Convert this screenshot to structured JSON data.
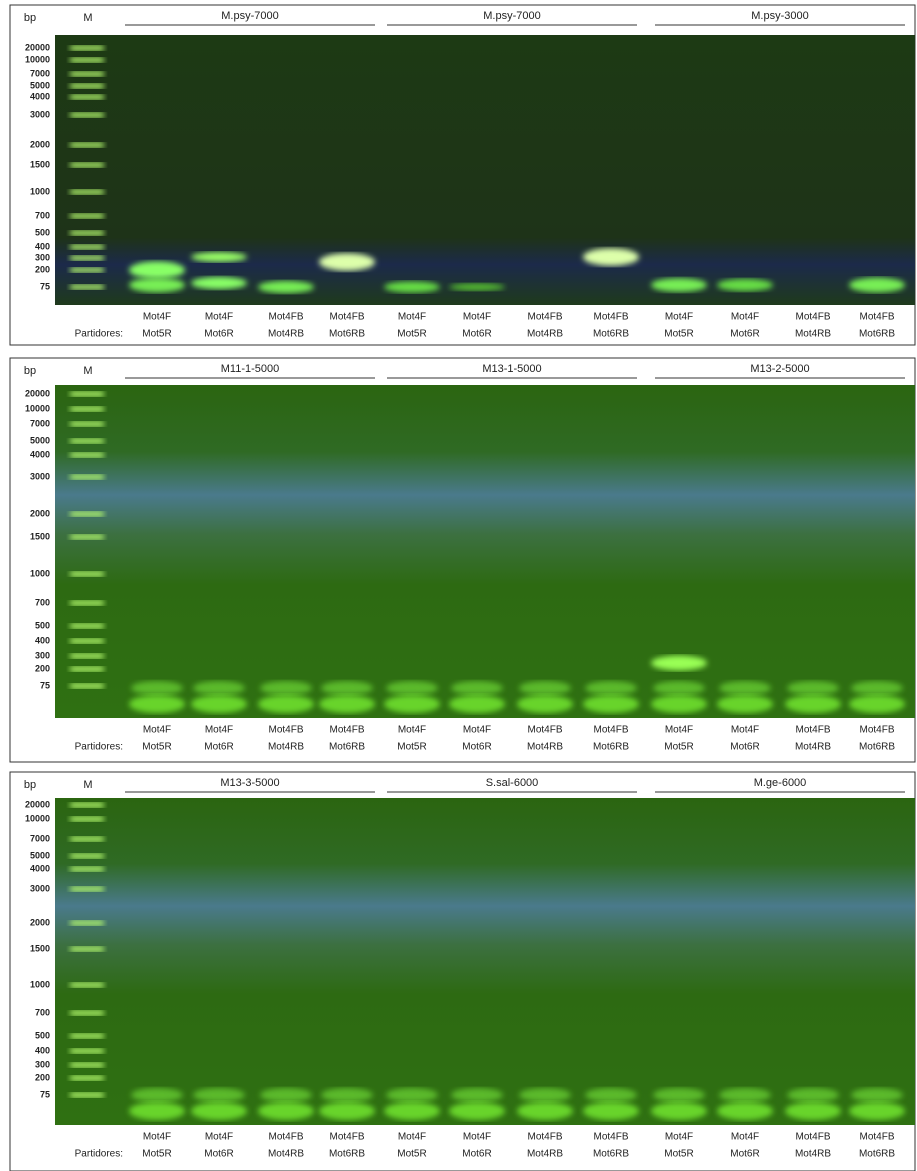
{
  "panels": [
    {
      "bp_label": "bp",
      "marker_label": "M",
      "ladder": [
        "20000",
        "10000",
        "7000",
        "5000",
        "4000",
        "3000",
        "2000",
        "1500",
        "1000",
        "700",
        "500",
        "400",
        "300",
        "200",
        "75"
      ],
      "groups": [
        "M.psy-7000",
        "M.psy-7000",
        "M.psy-3000"
      ],
      "primers_prefix": "Partidores:",
      "primers_top": [
        "Mot4F",
        "Mot4F",
        "Mot4FB",
        "Mot4FB",
        "Mot4F",
        "Mot4F",
        "Mot4FB",
        "Mot4FB",
        "Mot4F",
        "Mot4F",
        "Mot4FB",
        "Mot4FB"
      ],
      "primers_bottom": [
        "Mot5R",
        "Mot6R",
        "Mot4RB",
        "Mot6RB",
        "Mot5R",
        "Mot6R",
        "Mot4RB",
        "Mot6RB",
        "Mot5R",
        "Mot6R",
        "Mot4RB",
        "Mot6RB"
      ]
    },
    {
      "bp_label": "bp",
      "marker_label": "M",
      "ladder": [
        "20000",
        "10000",
        "7000",
        "5000",
        "4000",
        "3000",
        "2000",
        "1500",
        "1000",
        "700",
        "500",
        "400",
        "300",
        "200",
        "75"
      ],
      "groups": [
        "M11-1-5000",
        "M13-1-5000",
        "M13-2-5000"
      ],
      "primers_prefix": "Partidores:",
      "primers_top": [
        "Mot4F",
        "Mot4F",
        "Mot4FB",
        "Mot4FB",
        "Mot4F",
        "Mot4F",
        "Mot4FB",
        "Mot4FB",
        "Mot4F",
        "Mot4F",
        "Mot4FB",
        "Mot4FB"
      ],
      "primers_bottom": [
        "Mot5R",
        "Mot6R",
        "Mot4RB",
        "Mot6RB",
        "Mot5R",
        "Mot6R",
        "Mot4RB",
        "Mot6RB",
        "Mot5R",
        "Mot6R",
        "Mot4RB",
        "Mot6RB"
      ]
    },
    {
      "bp_label": "bp",
      "marker_label": "M",
      "ladder": [
        "20000",
        "10000",
        "7000",
        "5000",
        "4000",
        "3000",
        "2000",
        "1500",
        "1000",
        "700",
        "500",
        "400",
        "300",
        "200",
        "75"
      ],
      "groups": [
        "M13-3-5000",
        "S.sal-6000",
        "M.ge-6000"
      ],
      "primers_prefix": "Partidores:",
      "primers_top": [
        "Mot4F",
        "Mot4F",
        "Mot4FB",
        "Mot4FB",
        "Mot4F",
        "Mot4F",
        "Mot4FB",
        "Mot4FB",
        "Mot4F",
        "Mot4F",
        "Mot4FB",
        "Mot4FB"
      ],
      "primers_bottom": [
        "Mot5R",
        "Mot6R",
        "Mot4RB",
        "Mot6RB",
        "Mot5R",
        "Mot6R",
        "Mot4RB",
        "Mot6RB",
        "Mot5R",
        "Mot6R",
        "Mot4RB",
        "Mot6RB"
      ]
    }
  ]
}
